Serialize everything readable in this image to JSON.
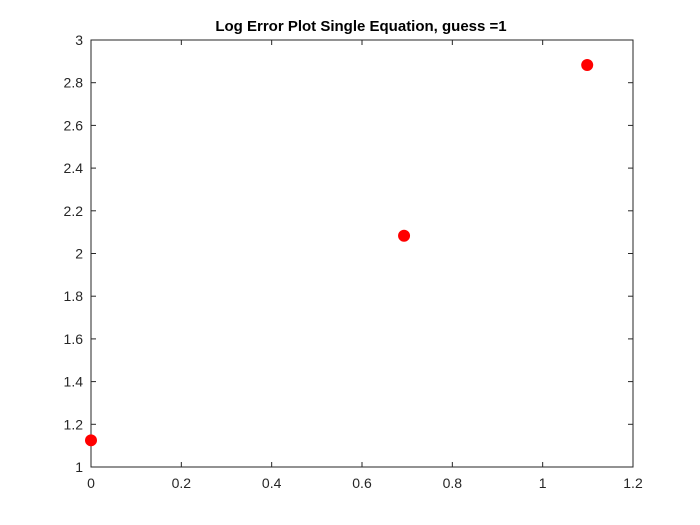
{
  "chart_data": {
    "type": "scatter",
    "title": "Log Error Plot Single Equation, guess =1",
    "xlabel": "",
    "ylabel": "",
    "xlim": [
      0,
      1.2
    ],
    "ylim": [
      1,
      3
    ],
    "xticks": [
      "0",
      "0.2",
      "0.4",
      "0.6",
      "0.8",
      "1",
      "1.2"
    ],
    "yticks": [
      "1",
      "1.2",
      "1.4",
      "1.6",
      "1.8",
      "2",
      "2.2",
      "2.4",
      "2.6",
      "2.8",
      "3"
    ],
    "grid": false,
    "marker_color": "#ff0000",
    "series": [
      {
        "x": [
          0,
          0.6931,
          1.0986
        ],
        "y": [
          1.125,
          2.083,
          2.883
        ]
      }
    ]
  }
}
